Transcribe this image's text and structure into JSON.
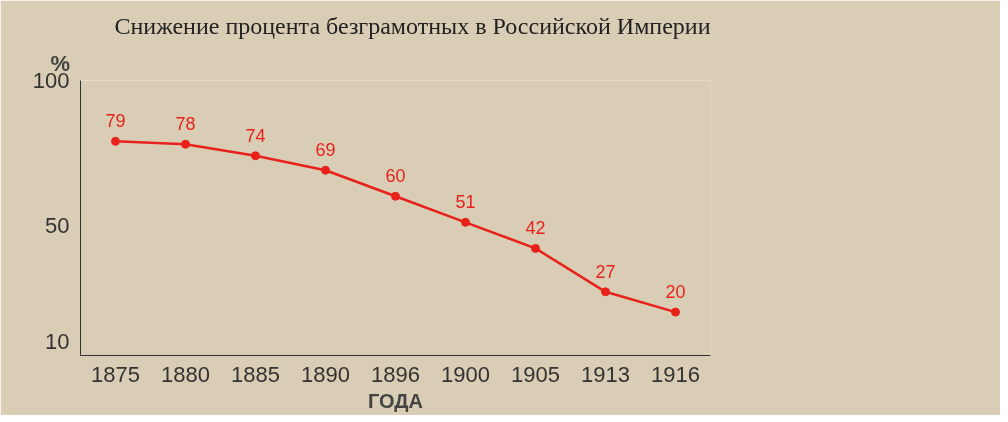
{
  "chart_data": {
    "type": "line",
    "title": "Снижение процента безграмотных в Российской Империи",
    "xlabel": "ГОДА",
    "ylabel": "%",
    "categories": [
      "1875",
      "1880",
      "1885",
      "1890",
      "1896",
      "1900",
      "1905",
      "1913",
      "1916"
    ],
    "series": [
      {
        "color": "#e8221b",
        "values": [
          79,
          78,
          74,
          69,
          60,
          51,
          42,
          27,
          20
        ]
      }
    ],
    "ylim": [
      5,
      100
    ],
    "yticks": [
      10,
      50,
      100
    ],
    "grid": false,
    "marker": "circle",
    "line_style": "solid",
    "data_labels": true
  }
}
